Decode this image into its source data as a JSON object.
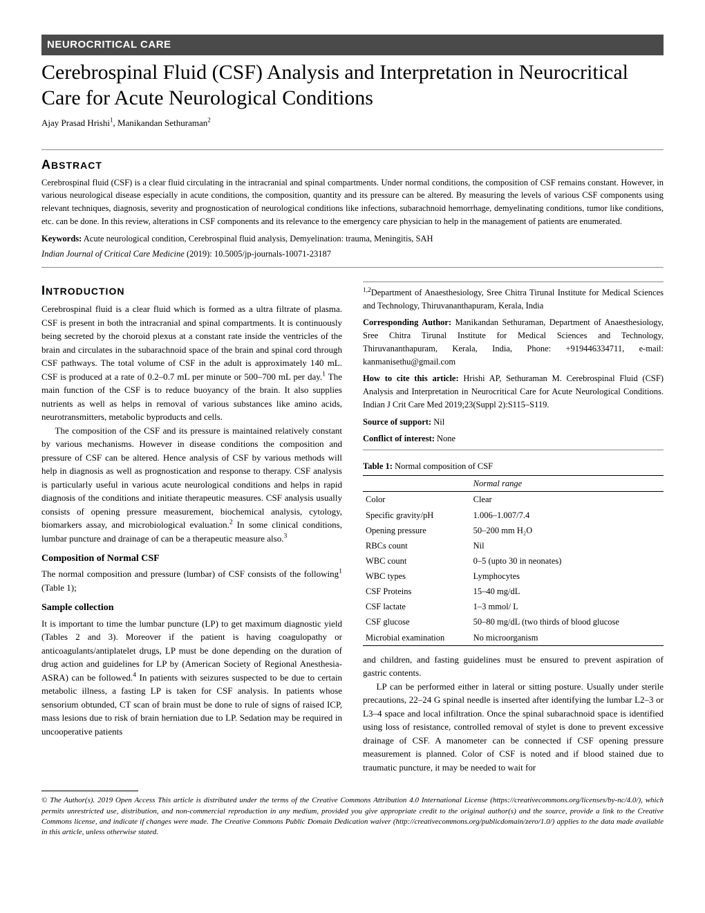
{
  "header": {
    "category": "NEUROCRITICAL CARE",
    "title": "Cerebrospinal Fluid (CSF) Analysis and Interpretation in Neurocritical Care for Acute Neurological Conditions",
    "author1_name": "Ajay Prasad Hrishi",
    "author1_sup": "1",
    "author_sep": ", ",
    "author2_name": "Manikandan Sethuraman",
    "author2_sup": "2"
  },
  "abstract": {
    "heading_first": "A",
    "heading_rest": "BSTRACT",
    "text": "Cerebrospinal fluid (CSF) is a clear fluid circulating in the intracranial and spinal compartments. Under normal conditions, the composition of CSF remains constant. However, in various neurological disease especially in acute conditions, the composition, quantity and its pressure can be altered. By measuring the levels of various CSF components using relevant techniques, diagnosis, severity and prognostication of neurological conditions like infections, subarachnoid hemorrhage, demyelinating conditions, tumor like conditions, etc. can be done. In this review, alterations in CSF components and its relevance to the emergency care physician to help in the management of patients are enumerated.",
    "keywords_label": "Keywords:",
    "keywords_text": " Acute neurological condition, Cerebrospinal fluid analysis, Demyelination: trauma, Meningitis, SAH",
    "journal_name": "Indian Journal of Critical Care Medicine",
    "journal_rest": " (2019): 10.5005/jp-journals-10071-23187"
  },
  "intro": {
    "heading_first": "I",
    "heading_rest": "NTRODUCTION",
    "p1a": "Cerebrospinal fluid is a clear fluid which is formed as a ultra filtrate of plasma. CSF is present in both the intracranial and spinal compartments. It is continuously being secreted by the choroid plexus at a constant rate inside the ventricles of the brain and circulates in the subarachnoid space of the brain and spinal cord through CSF pathways. The total volume of CSF in the adult is approximately 140 mL. CSF is produced at a rate of 0.2–0.7 mL per minute or 500–700 mL per day.",
    "p1_sup1": "1",
    "p1b": " The main function of the CSF is to reduce buoyancy of the brain. It also supplies nutrients as well as helps in removal of various substances like amino acids, neurotransmitters, metabolic byproducts and cells.",
    "p2a": "The composition of the CSF and its pressure is maintained relatively constant by various mechanisms. However in disease conditions the composition and pressure of CSF can be altered. Hence analysis of CSF by various methods will help in diagnosis as well as prognostication and response to therapy. CSF analysis is particularly useful in various acute neurological conditions and helps in rapid diagnosis of the conditions and initiate therapeutic measures. CSF analysis usually consists of opening pressure measurement, biochemical analysis, cytology, biomarkers assay, and microbiological evaluation.",
    "p2_sup1": "2",
    "p2b": " In some clinical conditions, lumbar puncture and drainage of can be a therapeutic measure also.",
    "p2_sup2": "3",
    "sub1": "Composition of Normal CSF",
    "p3a": "The normal composition and pressure (lumbar) of CSF consists of the following",
    "p3_sup": "1",
    "p3b": " (Table 1);",
    "sub2": "Sample collection",
    "p4a": "It is important to time the lumbar puncture (LP) to get maximum diagnostic yield (Tables 2 and 3). Moreover if the patient is having coagulopathy or anticoagulants/antiplatelet drugs, LP must be done depending on the duration of drug action and guidelines for LP by (American Society of Regional Anesthesia- ASRA) can be followed.",
    "p4_sup": "4",
    "p4b": " In patients with seizures suspected to be due to certain metabolic illness, a fasting LP is taken for CSF analysis. In patients whose sensorium obtunded, CT scan of brain must be done to rule of signs of raised ICP, mass lesions due to risk of brain herniation due to LP. Sedation may be required in uncooperative patients"
  },
  "affiliations": {
    "dept_sup": "1,2",
    "dept": "Department of Anaesthesiology, Sree Chitra Tirunal Institute for Medical Sciences and Technology, Thiruvananthapuram, Kerala, India",
    "corr_label": "Corresponding Author:",
    "corr_text": " Manikandan Sethuraman, Department of Anaesthesiology, Sree Chitra Tirunal Institute for Medical Sciences and Technology, Thiruvananthapuram, Kerala, India, Phone: +919446334711, e-mail: kanmanisethu@gmail.com",
    "cite_label": "How to cite this article:",
    "cite_text": " Hrishi AP, Sethuraman M. Cerebrospinal Fluid (CSF) Analysis and Interpretation in Neurocritical Care for Acute Neurological Conditions. Indian J Crit Care Med 2019;23(Suppl 2):S115–S119.",
    "support_label": "Source of support:",
    "support_text": " Nil",
    "conflict_label": "Conflict of interest:",
    "conflict_text": " None"
  },
  "table1": {
    "caption_label": "Table 1:",
    "caption_text": " Normal composition of CSF",
    "header_col2": "Normal range",
    "rows": [
      {
        "k": "Color",
        "v": "Clear"
      },
      {
        "k": "Specific gravity/pH",
        "v": "1.006–1.007/7.4"
      },
      {
        "k": "Opening pressure",
        "v": "50–200 mm H₂O"
      },
      {
        "k": "RBCs count",
        "v": "Nil"
      },
      {
        "k": "WBC count",
        "v": "0–5 (upto 30 in neonates)"
      },
      {
        "k": "WBC types",
        "v": "Lymphocytes"
      },
      {
        "k": "CSF Proteins",
        "v": "15–40 mg/dL"
      },
      {
        "k": "CSF lactate",
        "v": "1–3 mmol/ L"
      },
      {
        "k": "CSF glucose",
        "v": "50–80 mg/dL (two thirds of blood glucose"
      },
      {
        "k": "Microbial examination",
        "v": "No microorganism"
      }
    ]
  },
  "col2_body": {
    "p1": "and children, and fasting guidelines must be ensured to prevent aspiration of gastric contents.",
    "p2": "LP can be performed either in lateral or sitting posture. Usually under sterile precautions, 22–24 G spinal needle is inserted after identifying the lumbar L2–3 or L3–4 space and local infiltration. Once the spinal subarachnoid space is identified using loss of resistance, controlled removal of stylet is done to prevent excessive drainage of CSF. A manometer can be connected if CSF opening pressure measurement is planned. Color of CSF is noted and if blood stained due to traumatic puncture, it may be needed to wait for"
  },
  "license": {
    "text": "© The Author(s). 2019 Open Access This article is distributed under the terms of the Creative Commons Attribution 4.0 International License (https://creativecommons.org/licenses/by-nc/4.0/), which permits unrestricted use, distribution, and non-commercial reproduction in any medium, provided you give appropriate credit to the original author(s) and the source, provide a link to the Creative Commons license, and indicate if changes were made. The Creative Commons Public Domain Dedication waiver (http://creativecommons.org/publicdomain/zero/1.0/) applies to the data made available in this article, unless otherwise stated."
  }
}
